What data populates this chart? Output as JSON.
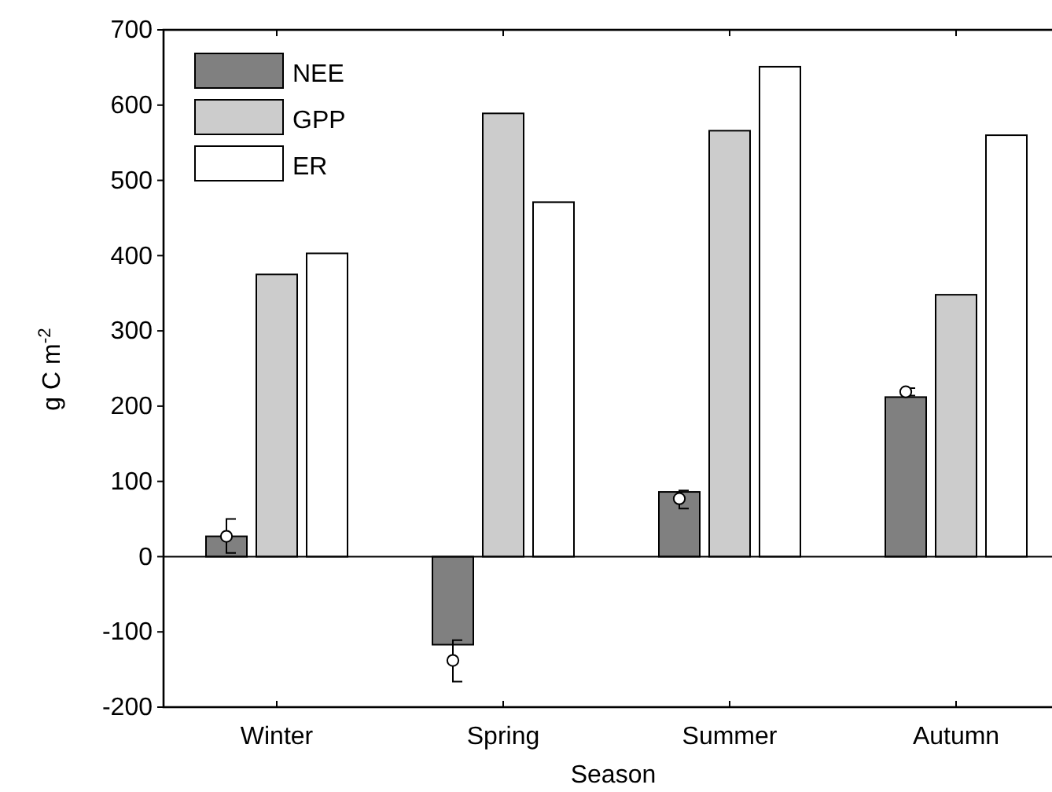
{
  "chart_data": {
    "type": "bar",
    "xlabel": "Season",
    "ylabel": "g C m$^{-2}$",
    "categories": [
      "Winter",
      "Spring",
      "Summer",
      "Autumn"
    ],
    "series": [
      {
        "name": "NEE",
        "color": "#808080",
        "values": [
          27,
          -117,
          86,
          212
        ]
      },
      {
        "name": "GPP",
        "color": "#cccccc",
        "values": [
          375,
          589,
          566,
          348
        ]
      },
      {
        "name": "ER",
        "color": "#ffffff",
        "values": [
          403,
          471,
          651,
          560
        ]
      },
      {
        "type": "scatter",
        "color": "#ffffff",
        "x": [
          "Winter",
          "Spring",
          "Summer",
          "Autumn"
        ],
        "values": [
          27,
          -138,
          77,
          219
        ],
        "errors": [
          [
            5,
            50
          ],
          [
            -166,
            -111
          ],
          [
            64,
            88
          ],
          [
            214,
            224
          ]
        ]
      }
    ],
    "ylim": [
      -200,
      700
    ],
    "yticks": [
      -200,
      -100,
      0,
      100,
      200,
      300,
      400,
      500,
      600,
      700
    ],
    "legend": "top left",
    "marker": "circle"
  }
}
